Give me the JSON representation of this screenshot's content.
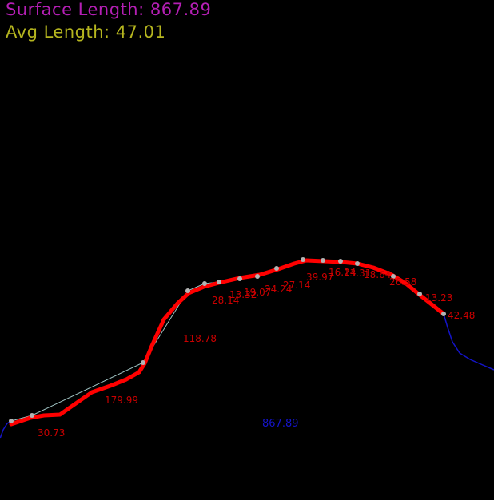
{
  "hud": {
    "surface_label": "Surface Length: 867.89",
    "avg_label": "Avg Length: 47.01"
  },
  "total_label": "867.89",
  "segment_labels": [
    "30.73",
    "179.99",
    "118.78",
    "28.14",
    "13.32",
    "19.07",
    "24.24",
    "27.14",
    "39.97",
    "16.24",
    "13.31",
    "18.64",
    "26.58",
    "13.23",
    "42.48"
  ],
  "colors": {
    "background": "#000000",
    "surface_text": "#b51fb5",
    "avg_text": "#b5b51f",
    "fit_curve": "#ff0000",
    "segment_labels": "#cc0000",
    "raw_profile": "#1414c8",
    "control_polyline": "#9fc2c2",
    "control_points": "#b4b4b4",
    "total_label": "#1414c8"
  },
  "markers": {
    "control_points": "circle",
    "fit_curve": "thick-line"
  }
}
